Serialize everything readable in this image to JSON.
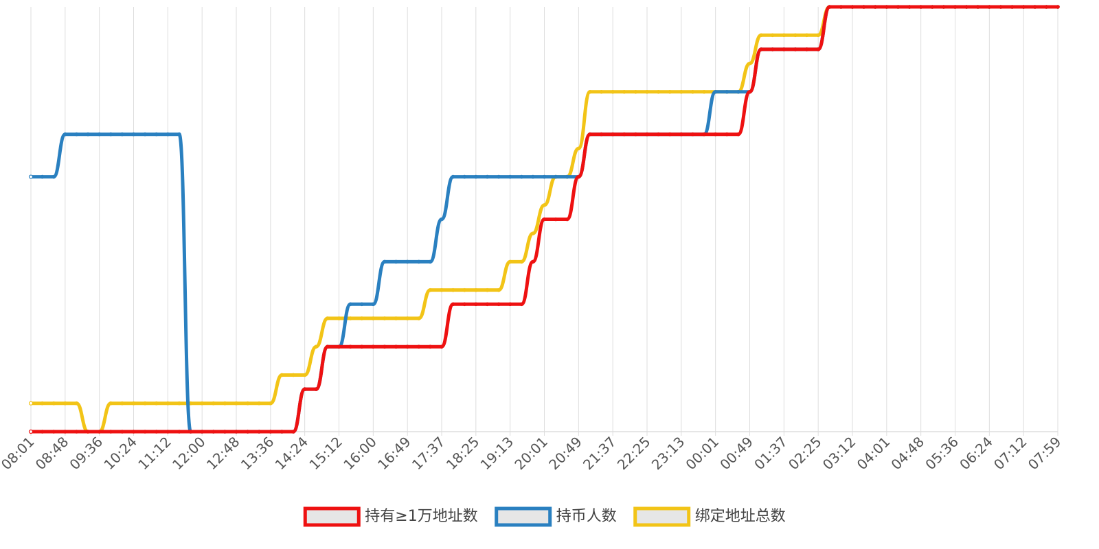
{
  "chart_data": {
    "type": "line",
    "categories": [
      "08:01",
      null,
      null,
      "08:48",
      null,
      null,
      "09:36",
      null,
      null,
      "10:24",
      null,
      null,
      "11:12",
      null,
      null,
      "12:00",
      null,
      null,
      "12:48",
      null,
      null,
      "13:36",
      null,
      null,
      "14:24",
      null,
      null,
      "15:12",
      null,
      null,
      "16:00",
      null,
      null,
      "16:49",
      null,
      null,
      "17:37",
      null,
      null,
      "18:25",
      null,
      null,
      "19:13",
      null,
      null,
      "20:01",
      null,
      null,
      "20:49",
      null,
      null,
      "21:37",
      null,
      null,
      "22:25",
      null,
      null,
      "23:13",
      null,
      null,
      "00:01",
      null,
      null,
      "00:49",
      null,
      null,
      "01:37",
      null,
      null,
      "02:25",
      null,
      null,
      "03:12",
      null,
      null,
      "04:01",
      null,
      null,
      "04:48",
      null,
      null,
      "05:36",
      null,
      null,
      "06:24",
      null,
      null,
      "07:12",
      null,
      null,
      "07:59"
    ],
    "series": [
      {
        "name": "持有≥1万地址数",
        "color": "#ee1111",
        "values": [
          0,
          0,
          0,
          0,
          0,
          0,
          0,
          0,
          0,
          0,
          0,
          0,
          0,
          0,
          0,
          0,
          0,
          0,
          0,
          0,
          0,
          0,
          0,
          0,
          3,
          3,
          6,
          6,
          6,
          6,
          6,
          6,
          6,
          6,
          6,
          6,
          6,
          9,
          9,
          9,
          9,
          9,
          9,
          9,
          12,
          15,
          15,
          15,
          18,
          21,
          21,
          21,
          21,
          21,
          21,
          21,
          21,
          21,
          21,
          21,
          21,
          21,
          21,
          24,
          27,
          27,
          27,
          27,
          27,
          27,
          30,
          30,
          30,
          30,
          30,
          30,
          30,
          30,
          30,
          30,
          30,
          30,
          30,
          30,
          30,
          30,
          30,
          30,
          30,
          30,
          30
        ]
      },
      {
        "name": "持币人数",
        "color": "#2a80c0",
        "values": [
          18,
          18,
          18,
          21,
          21,
          21,
          21,
          21,
          21,
          21,
          21,
          21,
          21,
          21,
          0,
          0,
          0,
          0,
          0,
          0,
          0,
          0,
          0,
          0,
          3,
          3,
          6,
          6,
          9,
          9,
          9,
          12,
          12,
          12,
          12,
          12,
          15,
          18,
          18,
          18,
          18,
          18,
          18,
          18,
          18,
          18,
          18,
          18,
          18,
          21,
          21,
          21,
          21,
          21,
          21,
          21,
          21,
          21,
          21,
          21,
          24,
          24,
          24,
          24,
          27,
          27,
          27,
          27,
          27,
          27,
          30,
          30,
          30,
          30,
          30,
          30,
          30,
          30,
          30,
          30,
          30,
          30,
          30,
          30,
          30,
          30,
          30,
          30,
          30,
          30,
          30
        ]
      },
      {
        "name": "绑定地址总数",
        "color": "#f2c417",
        "values": [
          2,
          2,
          2,
          2,
          2,
          0,
          0,
          2,
          2,
          2,
          2,
          2,
          2,
          2,
          2,
          2,
          2,
          2,
          2,
          2,
          2,
          2,
          4,
          4,
          4,
          6,
          8,
          8,
          8,
          8,
          8,
          8,
          8,
          8,
          8,
          10,
          10,
          10,
          10,
          10,
          10,
          10,
          12,
          12,
          14,
          16,
          18,
          18,
          20,
          24,
          24,
          24,
          24,
          24,
          24,
          24,
          24,
          24,
          24,
          24,
          24,
          24,
          24,
          26,
          28,
          28,
          28,
          28,
          28,
          28,
          30,
          30,
          30,
          30,
          30,
          30,
          30,
          30,
          30,
          30,
          30,
          30,
          30,
          30,
          30,
          30,
          30,
          30,
          30,
          30,
          30
        ]
      }
    ],
    "ylim": [
      0,
      30
    ],
    "grid": true
  }
}
